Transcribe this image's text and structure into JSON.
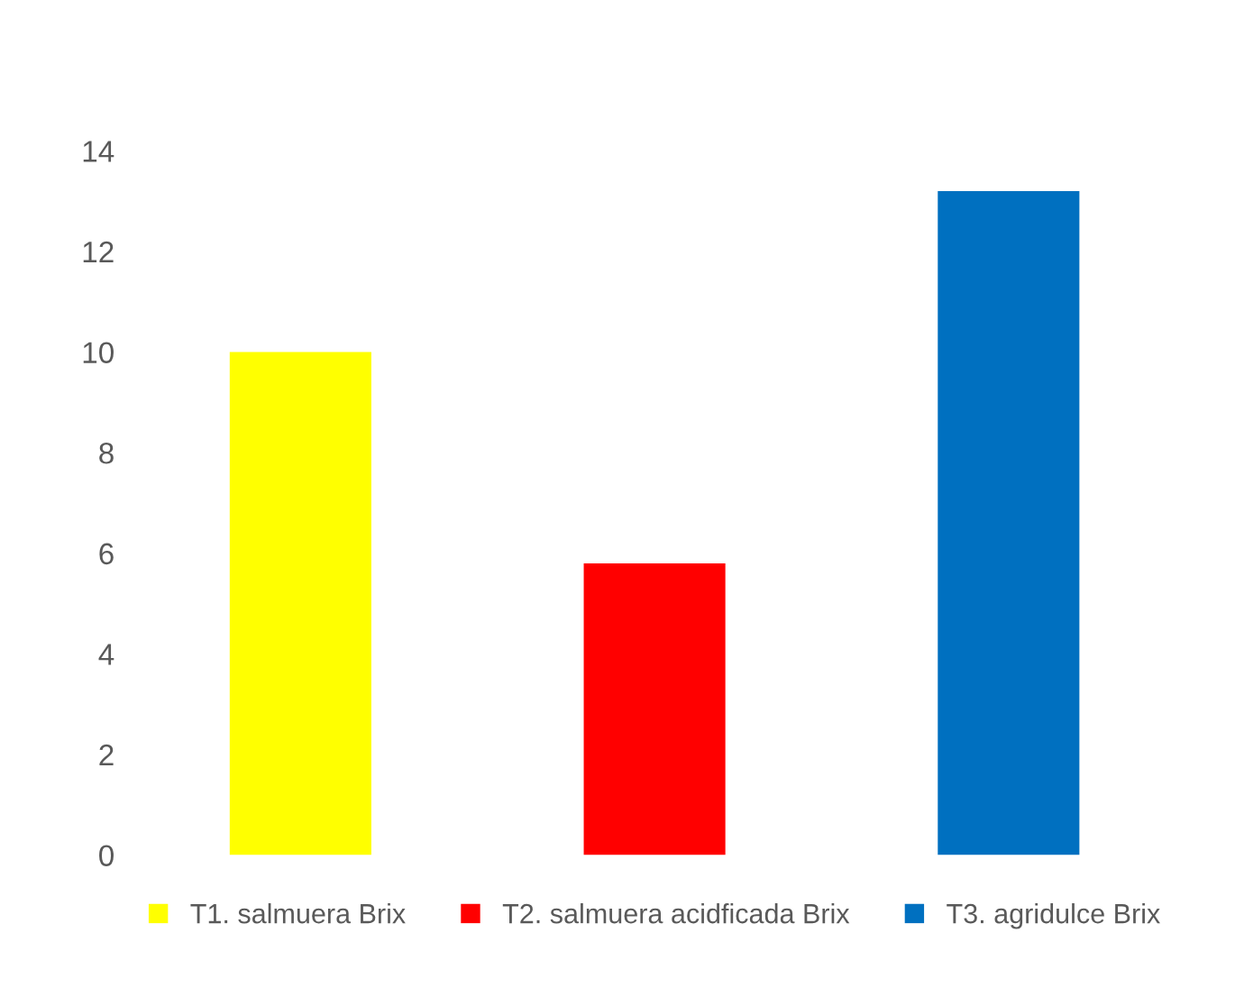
{
  "chart_data": {
    "type": "bar",
    "stacked": true,
    "categories": [
      null,
      null,
      null
    ],
    "series": [
      {
        "name": "T1. salmuera Brix",
        "color": "#ffff00",
        "values": [
          10.0,
          null,
          null
        ]
      },
      {
        "name": "T2. salmuera acidficada Brix",
        "color": "#ff0000",
        "values": [
          null,
          5.8,
          null
        ]
      },
      {
        "name": "T3. agridulce Brix",
        "color": "#0070c0",
        "values": [
          null,
          null,
          13.2
        ]
      }
    ],
    "ylim": [
      0,
      14
    ],
    "yticks": [
      0,
      2,
      4,
      6,
      8,
      10,
      12,
      14
    ],
    "grid": false,
    "legend": "bottom"
  }
}
